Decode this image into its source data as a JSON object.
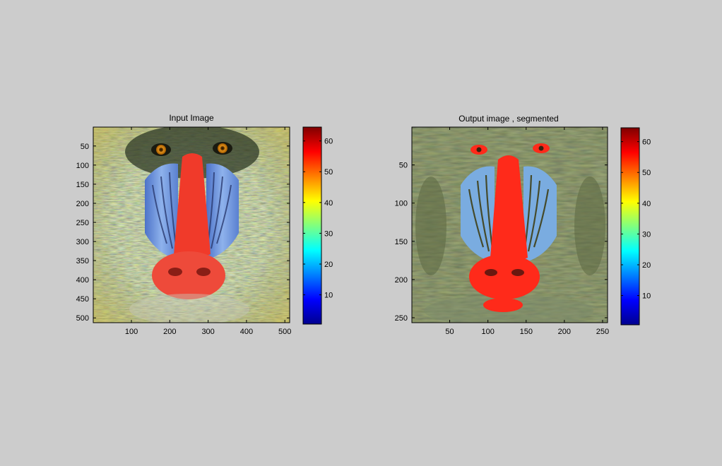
{
  "chart_data": [
    {
      "type": "heatmap",
      "title": "Input Image",
      "image": "mandrill",
      "x_ticks": [
        100,
        200,
        300,
        400,
        500
      ],
      "y_ticks": [
        50,
        100,
        150,
        200,
        250,
        300,
        350,
        400,
        450,
        500
      ],
      "xlim": [
        0.5,
        512.5
      ],
      "ylim": [
        0.5,
        512.5
      ],
      "y_reversed": true,
      "colorbar": {
        "colormap": "jet",
        "ticks": [
          10,
          20,
          30,
          40,
          50,
          60
        ],
        "range": [
          0.5,
          64.5
        ]
      }
    },
    {
      "type": "heatmap",
      "title": "Output image , segmented",
      "image": "mandrill-segmented",
      "x_ticks": [
        50,
        100,
        150,
        200,
        250
      ],
      "y_ticks": [
        50,
        100,
        150,
        200,
        250
      ],
      "xlim": [
        0.5,
        256.5
      ],
      "ylim": [
        0.5,
        256.5
      ],
      "y_reversed": true,
      "colorbar": {
        "colormap": "jet",
        "ticks": [
          10,
          20,
          30,
          40,
          50,
          60
        ],
        "range": [
          0.5,
          64.5
        ]
      }
    }
  ]
}
